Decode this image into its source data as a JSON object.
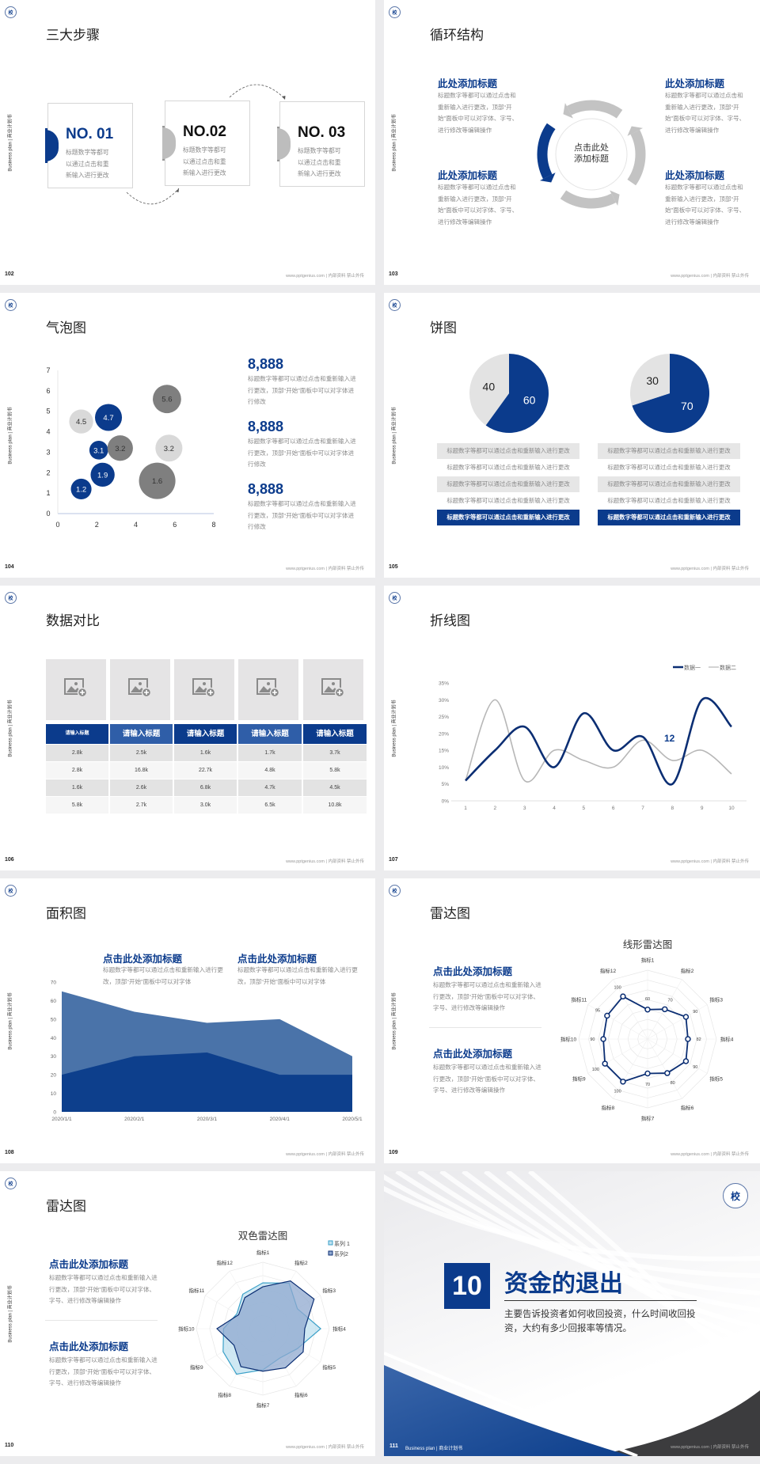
{
  "common": {
    "sidebar": "Business plan | 商业计划书",
    "footer": "www.pptgenius.com | 内部资料 禁止外传",
    "logo_text": "校",
    "brand_color": "#0b3b8c",
    "gray_color": "#bdbdbd"
  },
  "slides": {
    "s102": {
      "page": "102",
      "title": "三大步骤",
      "steps": [
        {
          "no": "NO. 01",
          "text": "标题数字等都可以通过点击和重新输入进行更改",
          "active": true
        },
        {
          "no": "NO.02",
          "text": "标题数字等都可以通过点击和重新输入进行更改",
          "active": false
        },
        {
          "no": "NO. 03",
          "text": "标题数字等都可以通过点击和重新输入进行更改",
          "active": false
        }
      ]
    },
    "s103": {
      "page": "103",
      "title": "循环结构",
      "center": "点击此处添加标题",
      "items": [
        {
          "heading": "此处添加标题",
          "text": "标题数字等都可以通过点击和重新输入进行更改，顶部“开始”面板中可以对字体、字号、进行修改等编辑操作"
        },
        {
          "heading": "此处添加标题",
          "text": "标题数字等都可以通过点击和重新输入进行更改，顶部“开始”面板中可以对字体、字号、进行修改等编辑操作"
        },
        {
          "heading": "此处添加标题",
          "text": "标题数字等都可以通过点击和重新输入进行更改，顶部“开始”面板中可以对字体、字号、进行修改等编辑操作"
        },
        {
          "heading": "此处添加标题",
          "text": "标题数字等都可以通过点击和重新输入进行更改，顶部“开始”面板中可以对字体、字号、进行修改等编辑操作"
        }
      ]
    },
    "s104": {
      "page": "104",
      "title": "气泡图",
      "blocks": [
        {
          "value": "8,888",
          "text": "标题数字等都可以通过点击和重新输入进行更改，顶部“开始”面板中可以对字体进行修改"
        },
        {
          "value": "8,888",
          "text": "标题数字等都可以通过点击和重新输入进行更改，顶部“开始”面板中可以对字体进行修改"
        },
        {
          "value": "8,888",
          "text": "标题数字等都可以通过点击和重新输入进行更改，顶部“开始”面板中可以对字体进行修改"
        }
      ]
    },
    "s105": {
      "page": "105",
      "title": "饼图",
      "lists": [
        [
          "标题数字等都可以通过点击和重新输入进行更改",
          "标题数字等都可以通过点击和重新输入进行更改",
          "标题数字等都可以通过点击和重新输入进行更改",
          "标题数字等都可以通过点击和重新输入进行更改",
          "标题数字等都可以通过点击和重新输入进行更改"
        ],
        [
          "标题数字等都可以通过点击和重新输入进行更改",
          "标题数字等都可以通过点击和重新输入进行更改",
          "标题数字等都可以通过点击和重新输入进行更改",
          "标题数字等都可以通过点击和重新输入进行更改",
          "标题数字等都可以通过点击和重新输入进行更改"
        ]
      ]
    },
    "s106": {
      "page": "106",
      "title": "数据对比",
      "image_icon": "add-image-icon",
      "table": {
        "headers": [
          "请输入标题",
          "请输入标题",
          "请输入标题",
          "请输入标题",
          "请输入标题"
        ],
        "rows": [
          [
            "2.8k",
            "2.5k",
            "1.6k",
            "1.7k",
            "3.7k"
          ],
          [
            "2.8k",
            "16.8k",
            "22.7k",
            "4.8k",
            "5.8k"
          ],
          [
            "1.6k",
            "2.6k",
            "6.8k",
            "4.7k",
            "4.5k"
          ],
          [
            "5.8k",
            "2.7k",
            "3.0k",
            "6.5k",
            "10.8k"
          ]
        ]
      }
    },
    "s107": {
      "page": "107",
      "title": "折线图",
      "annotation": "12"
    },
    "s108": {
      "page": "108",
      "title": "面积图",
      "notes": [
        {
          "heading": "点击此处添加标题",
          "text": "标题数字等都可以通过点击和重新输入进行更改，顶部“开始”面板中可以对字体"
        },
        {
          "heading": "点击此处添加标题",
          "text": "标题数字等都可以通过点击和重新输入进行更改，顶部“开始”面板中可以对字体"
        }
      ]
    },
    "s109": {
      "page": "109",
      "title": "雷达图",
      "notes": [
        {
          "heading": "点击此处添加标题",
          "text": "标题数字等都可以通过点击和重新输入进行更改，顶部“开始”面板中可以对字体、字号、进行修改等编辑操作"
        },
        {
          "heading": "点击此处添加标题",
          "text": "标题数字等都可以通过点击和重新输入进行更改，顶部“开始”面板中可以对字体、字号、进行修改等编辑操作"
        }
      ]
    },
    "s110": {
      "page": "110",
      "title": "雷达图",
      "notes": [
        {
          "heading": "点击此处添加标题",
          "text": "标题数字等都可以通过点击和重新输入进行更改，顶部“开始”面板中可以对字体、字号、进行修改等编辑操作"
        },
        {
          "heading": "点击此处添加标题",
          "text": "标题数字等都可以通过点击和重新输入进行更改，顶部“开始”面板中可以对字体、字号、进行修改等编辑操作"
        }
      ]
    },
    "s111": {
      "page": "111",
      "number": "10",
      "title": "资金的退出",
      "desc": "主要告诉投资者如何收回投资，什么时间收回投资，大约有多少回报率等情况。",
      "footer_left": "Business plan | 商业计划书"
    }
  },
  "chart_data": [
    {
      "id": "bubble",
      "type": "scatter",
      "xlim": [
        0,
        8
      ],
      "ylim": [
        0,
        7
      ],
      "xticks": [
        "0",
        "2",
        "4",
        "6",
        "8"
      ],
      "yticks": [
        "0",
        "1",
        "2",
        "3",
        "4",
        "5",
        "6",
        "7"
      ],
      "points": [
        {
          "x": 1.2,
          "y": 4.5,
          "size": 2.3,
          "label": "4.5",
          "color": "#d9d9d9"
        },
        {
          "x": 2.6,
          "y": 4.7,
          "size": 2.9,
          "label": "4.7",
          "color": "#0b3b8c"
        },
        {
          "x": 2.1,
          "y": 3.1,
          "size": 1.4,
          "label": "3.1",
          "color": "#0b3b8c"
        },
        {
          "x": 3.2,
          "y": 3.2,
          "size": 2.6,
          "label": "3.2",
          "color": "#7f7f7f"
        },
        {
          "x": 5.6,
          "y": 5.6,
          "size": 3.2,
          "label": "5.6",
          "color": "#7f7f7f"
        },
        {
          "x": 5.7,
          "y": 3.2,
          "size": 2.9,
          "label": "3.2",
          "color": "#d9d9d9"
        },
        {
          "x": 5.1,
          "y": 1.6,
          "size": 5.3,
          "label": "1.6",
          "color": "#7f7f7f"
        },
        {
          "x": 2.3,
          "y": 1.9,
          "size": 2.3,
          "label": "1.9",
          "color": "#0b3b8c"
        },
        {
          "x": 1.2,
          "y": 1.2,
          "size": 1.7,
          "label": "1.2",
          "color": "#0b3b8c"
        }
      ]
    },
    {
      "id": "pies",
      "type": "pie",
      "pies": [
        {
          "values": [
            60,
            40
          ],
          "labels": [
            "60",
            "40"
          ],
          "colors": [
            "#0b3b8c",
            "#e3e3e3"
          ]
        },
        {
          "values": [
            70,
            30
          ],
          "labels": [
            "70",
            "30"
          ],
          "colors": [
            "#0b3b8c",
            "#e3e3e3"
          ]
        }
      ]
    },
    {
      "id": "line",
      "type": "line",
      "x": [
        1,
        2,
        3,
        4,
        5,
        6,
        7,
        8,
        9,
        10
      ],
      "xticks": [
        "1",
        "2",
        "3",
        "4",
        "5",
        "6",
        "7",
        "8",
        "9",
        "10"
      ],
      "yticks": [
        "0%",
        "5%",
        "10%",
        "15%",
        "20%",
        "25%",
        "30%",
        "35%"
      ],
      "ylim": [
        0,
        35
      ],
      "legend": "top-right",
      "smooth": true,
      "series": [
        {
          "name": "数据一",
          "values": [
            6,
            15,
            22,
            10,
            26,
            15,
            19,
            5,
            30,
            22
          ],
          "color": "#0b2e73"
        },
        {
          "name": "数据二",
          "values": [
            6,
            30,
            6,
            15,
            12,
            10,
            18,
            12,
            15,
            8
          ],
          "color": "#b7b7b7"
        }
      ]
    },
    {
      "id": "area",
      "type": "area",
      "categories": [
        "2020/1/1",
        "2020/2/1",
        "2020/3/1",
        "2020/4/1",
        "2020/5/1"
      ],
      "yticks": [
        "0",
        "10",
        "20",
        "30",
        "40",
        "50",
        "60",
        "70"
      ],
      "ylim": [
        0,
        70
      ],
      "series": [
        {
          "values": [
            65,
            54,
            48,
            50,
            30
          ],
          "color": "#4a73a9"
        },
        {
          "values": [
            20,
            30,
            32,
            20,
            20
          ],
          "color": "#0d3f8c"
        }
      ]
    },
    {
      "id": "radar1",
      "type": "radar",
      "title": "线形雷达图",
      "axes": [
        "指标1",
        "指标2",
        "指标3",
        "指标4",
        "指标5",
        "指标6",
        "指标7",
        "指标8",
        "指标9",
        "指标10",
        "指标11",
        "指标12"
      ],
      "rlim": [
        0,
        140
      ],
      "series": [
        {
          "values": [
            60,
            70,
            90,
            82,
            90,
            80,
            70,
            100,
            100,
            90,
            95,
            100
          ],
          "labels": [
            "60",
            "70",
            "90",
            "82",
            "90",
            "80",
            "70",
            "100",
            "100",
            "90",
            "95",
            "100"
          ],
          "color": "#0b2e73"
        }
      ]
    },
    {
      "id": "radar2",
      "type": "radar",
      "title": "双色雷达图",
      "axes": [
        "指标1",
        "指标2",
        "指标3",
        "指标4",
        "指标5",
        "指标6",
        "指标7",
        "指标8",
        "指标9",
        "指标10",
        "指标11",
        "指标12"
      ],
      "rlim": [
        0,
        100
      ],
      "legend": "top-right",
      "series": [
        {
          "name": "系列 1",
          "values": [
            69,
            79,
            60,
            87,
            60,
            51,
            62,
            79,
            69,
            59,
            45,
            60
          ],
          "color": "#3aa0c8",
          "fill": "#bfe0ef"
        },
        {
          "name": "系列2",
          "values": [
            63,
            83,
            89,
            63,
            70,
            68,
            64,
            66,
            50,
            69,
            42,
            54
          ],
          "color": "#0b2e73",
          "fill": "#8fa8cf"
        }
      ]
    }
  ]
}
